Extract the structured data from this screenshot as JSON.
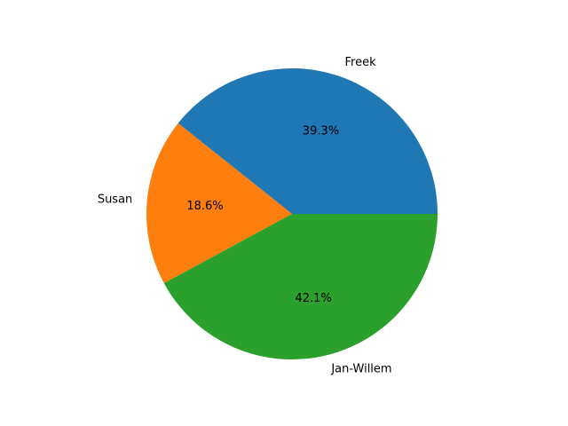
{
  "chart_data": {
    "type": "pie",
    "labels": [
      "Freek",
      "Susan",
      "Jan-Willem"
    ],
    "values": [
      39.3,
      18.6,
      42.1
    ],
    "percent_labels": [
      "39.3%",
      "18.6%",
      "42.1%"
    ],
    "colors": [
      "#1f77b4",
      "#ff7f0e",
      "#2ca02c"
    ],
    "start_angle_deg": 0,
    "direction": "counterclockwise"
  }
}
